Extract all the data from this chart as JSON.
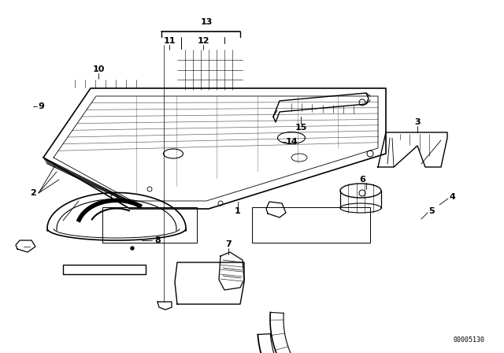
{
  "bg_color": "#ffffff",
  "line_color": "#000000",
  "part_id": "00005130",
  "figsize": [
    6.4,
    4.48
  ],
  "dpi": 100
}
